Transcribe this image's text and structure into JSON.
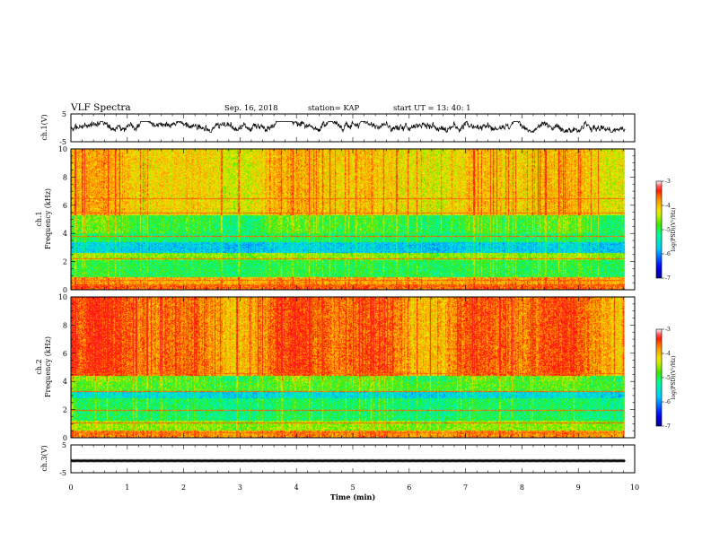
{
  "header": {
    "title": "VLF Spectra",
    "date": "Sep. 16, 2018",
    "station": "station= KAP",
    "start": "start  UT  =   13: 40: 1"
  },
  "chart_data": [
    {
      "type": "line",
      "panel": "ch1-waveform",
      "ylabel": "ch.1(V)",
      "ylim": [
        -5,
        5
      ],
      "y_ticks": [
        "5",
        "-5"
      ],
      "xlim": [
        0,
        10
      ],
      "x_data_max": 9.83,
      "series_description_level": 0.6,
      "amplitude_range": [
        -1.6,
        2.3
      ]
    },
    {
      "type": "heatmap",
      "panel": "ch1-spectrogram",
      "ylabel_line1": "ch.1",
      "ylabel_line2": "Frequency (kHz)",
      "ylim": [
        0,
        10
      ],
      "y_ticks": [
        "0",
        "2",
        "4",
        "6",
        "8",
        "10"
      ],
      "xlim": [
        0,
        10
      ],
      "x_data_max": 9.83,
      "bands": [
        {
          "f0": 0.0,
          "f1": 0.4,
          "level": -3.6
        },
        {
          "f0": 0.4,
          "f1": 0.9,
          "level": -3.9
        },
        {
          "f0": 0.9,
          "f1": 2.1,
          "level": -5.0
        },
        {
          "f0": 2.1,
          "f1": 2.6,
          "level": -4.6
        },
        {
          "f0": 2.6,
          "f1": 3.4,
          "level": -5.7
        },
        {
          "f0": 3.4,
          "f1": 4.0,
          "level": -5.1
        },
        {
          "f0": 4.0,
          "f1": 5.3,
          "level": -4.9
        },
        {
          "f0": 5.3,
          "f1": 10.0,
          "level": -4.1
        }
      ],
      "lines_khz": [
        0.3,
        0.7,
        2.2,
        3.8,
        5.5,
        6.5
      ],
      "colorbar": {
        "label": "log(PSD)(V²/Hz)",
        "min": -7,
        "max": -3,
        "ticks": [
          "-3",
          "-4",
          "-5",
          "-6",
          "-7"
        ]
      }
    },
    {
      "type": "heatmap",
      "panel": "ch2-spectrogram",
      "ylabel_line1": "ch.2",
      "ylabel_line2": "Frequency (kHz)",
      "ylim": [
        0,
        10
      ],
      "y_ticks": [
        "0",
        "2",
        "4",
        "6",
        "8",
        "10"
      ],
      "xlim": [
        0,
        10
      ],
      "x_data_max": 9.83,
      "bands": [
        {
          "f0": 0.0,
          "f1": 0.5,
          "level": -3.8
        },
        {
          "f0": 0.5,
          "f1": 1.2,
          "level": -4.6
        },
        {
          "f0": 1.2,
          "f1": 2.8,
          "level": -5.1
        },
        {
          "f0": 2.8,
          "f1": 3.3,
          "level": -5.6
        },
        {
          "f0": 3.3,
          "f1": 4.4,
          "level": -4.8
        },
        {
          "f0": 4.4,
          "f1": 10.0,
          "level": -3.7
        }
      ],
      "lines_khz": [
        0.4,
        1.1,
        2.0,
        3.3,
        4.6
      ],
      "colorbar": {
        "label": "log(PSD)(V²/Hz)",
        "min": -7,
        "max": -3,
        "ticks": [
          "-3",
          "-4",
          "-5",
          "-6",
          "-7"
        ]
      }
    },
    {
      "type": "line",
      "panel": "ch3-waveform",
      "ylabel": "ch.3(V)",
      "ylim": [
        -5,
        5
      ],
      "y_ticks": [
        "5",
        "-5"
      ],
      "xlim": [
        0,
        10
      ],
      "x_data_max": 9.83,
      "series_description_level": -0.7,
      "amplitude_range": [
        -0.95,
        -0.45
      ]
    }
  ],
  "x_axis": {
    "xlabel": "Time (min)",
    "ticks": [
      "0",
      "1",
      "2",
      "3",
      "4",
      "5",
      "6",
      "7",
      "8",
      "9",
      "10"
    ]
  },
  "colors": {
    "waveform": "#000000",
    "frame": "#000000"
  }
}
